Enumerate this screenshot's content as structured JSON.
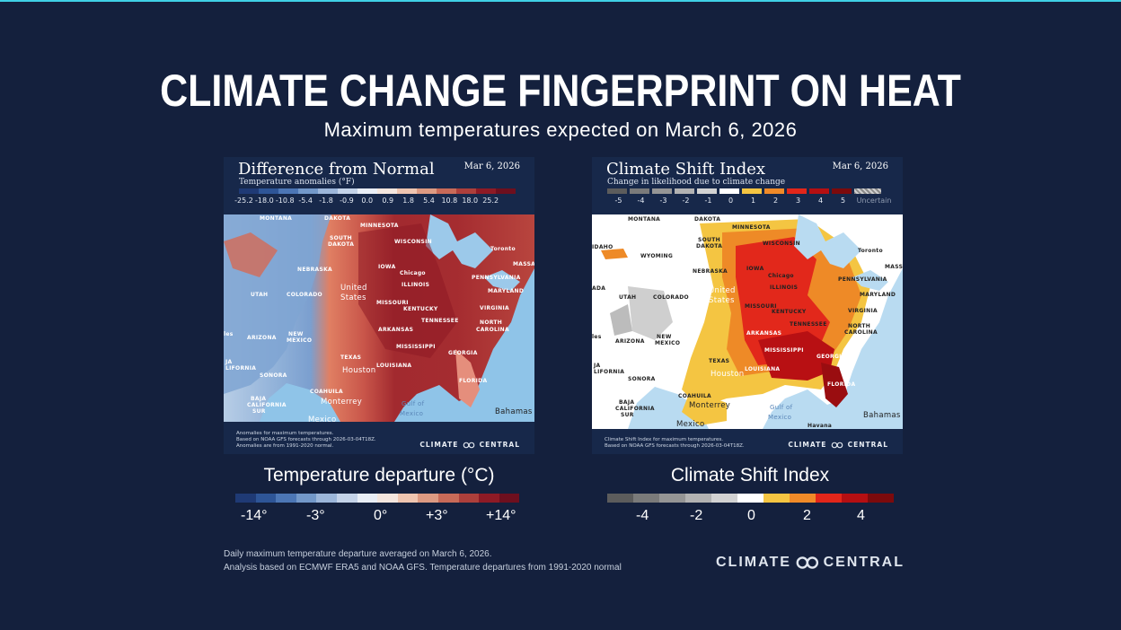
{
  "title": "CLIMATE CHANGE FINGERPRINT ON HEAT",
  "subtitle": "Maximum temperatures expected on March 6, 2026",
  "left_panel": {
    "title": "Difference from Normal",
    "date": "Mar 6, 2026",
    "subtitle": "Temperature anomalies (°F)",
    "scale_labels": [
      "-25.2",
      "-18.0",
      "-10.8",
      "-5.4",
      "-1.8",
      "-0.9",
      "0.0",
      "0.9",
      "1.8",
      "5.4",
      "10.8",
      "18.0",
      "25.2"
    ],
    "footnote_1": "Anomalies for maximum temperatures.",
    "footnote_2": "Based on NOAA GFS forecasts through 2026-03-04T18Z.",
    "footnote_3": "Anomalies are from 1991-2020 normal.",
    "brand_left": "CLIMATE",
    "brand_right": "CENTRAL"
  },
  "right_panel": {
    "title": "Climate Shift Index",
    "date": "Mar 6, 2026",
    "subtitle": "Change in likelihood due to climate change",
    "scale_labels": [
      "-5",
      "-4",
      "-3",
      "-2",
      "-1",
      "0",
      "1",
      "2",
      "3",
      "4",
      "5"
    ],
    "uncertain_label": "Uncertain",
    "footnote_1": "Climate Shift Index for maximum temperatures.",
    "footnote_2": "Based on NOAA GFS forecasts through 2026-03-04T18Z.",
    "brand_left": "CLIMATE",
    "brand_right": "CENTRAL"
  },
  "map_labels": {
    "montana": "MONTANA",
    "dakota": "DAKOTA",
    "minnesota": "MINNESOTA",
    "south_dakota_1": "SOUTH",
    "south_dakota_2": "DAKOTA",
    "wisconsin": "WISCONSIN",
    "idaho": "IDAHO",
    "wyoming": "WYOMING",
    "nebraska": "NEBRASKA",
    "iowa": "IOWA",
    "chicago": "Chicago",
    "illinois": "ILLINOIS",
    "toronto": "Toronto",
    "pennsylvania": "PENNSYLVANIA",
    "massa": "MASSA",
    "utah": "UTAH",
    "colorado": "COLORADO",
    "united": "United",
    "states": "States",
    "missouri": "MISSOURI",
    "kentucky": "KENTUCKY",
    "virginia": "VIRGINIA",
    "maryland": "MARYLAND",
    "ada": "ADA",
    "tennessee": "TENNESSEE",
    "north_1": "NORTH",
    "north_2": "CAROLINA",
    "arizona": "ARIZONA",
    "new_1": "NEW",
    "new_2": "MEXICO",
    "arkansas": "ARKANSAS",
    "mississippi": "MISSISSIPPI",
    "georgia": "GEORGIA",
    "texas": "TEXAS",
    "louisiana": "LOUISIANA",
    "houston": "Houston",
    "florida": "FLORIDA",
    "ja": "JA",
    "lifornia": "LIFORNIA",
    "sonora": "SONORA",
    "coahuila": "COAHUILA",
    "baja_1": "BAJA",
    "baja_2": "CALIFORNIA",
    "baja_3": "SUR",
    "monterrey": "Monterrey",
    "gulf_1": "Gulf of",
    "gulf_2": "Mexico",
    "bahamas": "Bahamas",
    "mexico": "Mexico",
    "havana": "Havana",
    "les": "les"
  },
  "left_legend": {
    "title": "Temperature departure (°C)",
    "labels": [
      "-14°",
      "-3°",
      "0°",
      "+3°",
      "+14°"
    ]
  },
  "right_legend": {
    "title": "Climate Shift Index",
    "labels": [
      "-4",
      "-2",
      "0",
      "2",
      "4"
    ]
  },
  "footer": {
    "line_1": "Daily maximum temperature departure averaged on March 6, 2026.",
    "line_2": "Analysis based on ECMWF ERA5 and NOAA GFS. Temperature departures from 1991-2020 normal"
  },
  "brand": {
    "left": "CLIMATE",
    "right": "CENTRAL"
  },
  "colors": {
    "background": "#14203d",
    "anomaly_scale": [
      "#1f3a75",
      "#2e5597",
      "#4c76b5",
      "#7398c9",
      "#9cb6da",
      "#c4d3e9",
      "#e9eef6",
      "#f4e6de",
      "#efc5b0",
      "#dd9a82",
      "#c86a58",
      "#ad3f3b",
      "#8e1a25",
      "#6e0f1e"
    ],
    "csi_scale": [
      "#5c5c5c",
      "#7a7a7a",
      "#959595",
      "#b2b2b2",
      "#d2d2d2",
      "#ffffff",
      "#f5c542",
      "#f08a28",
      "#e2261a",
      "#b50f12",
      "#7c0a0c"
    ]
  }
}
